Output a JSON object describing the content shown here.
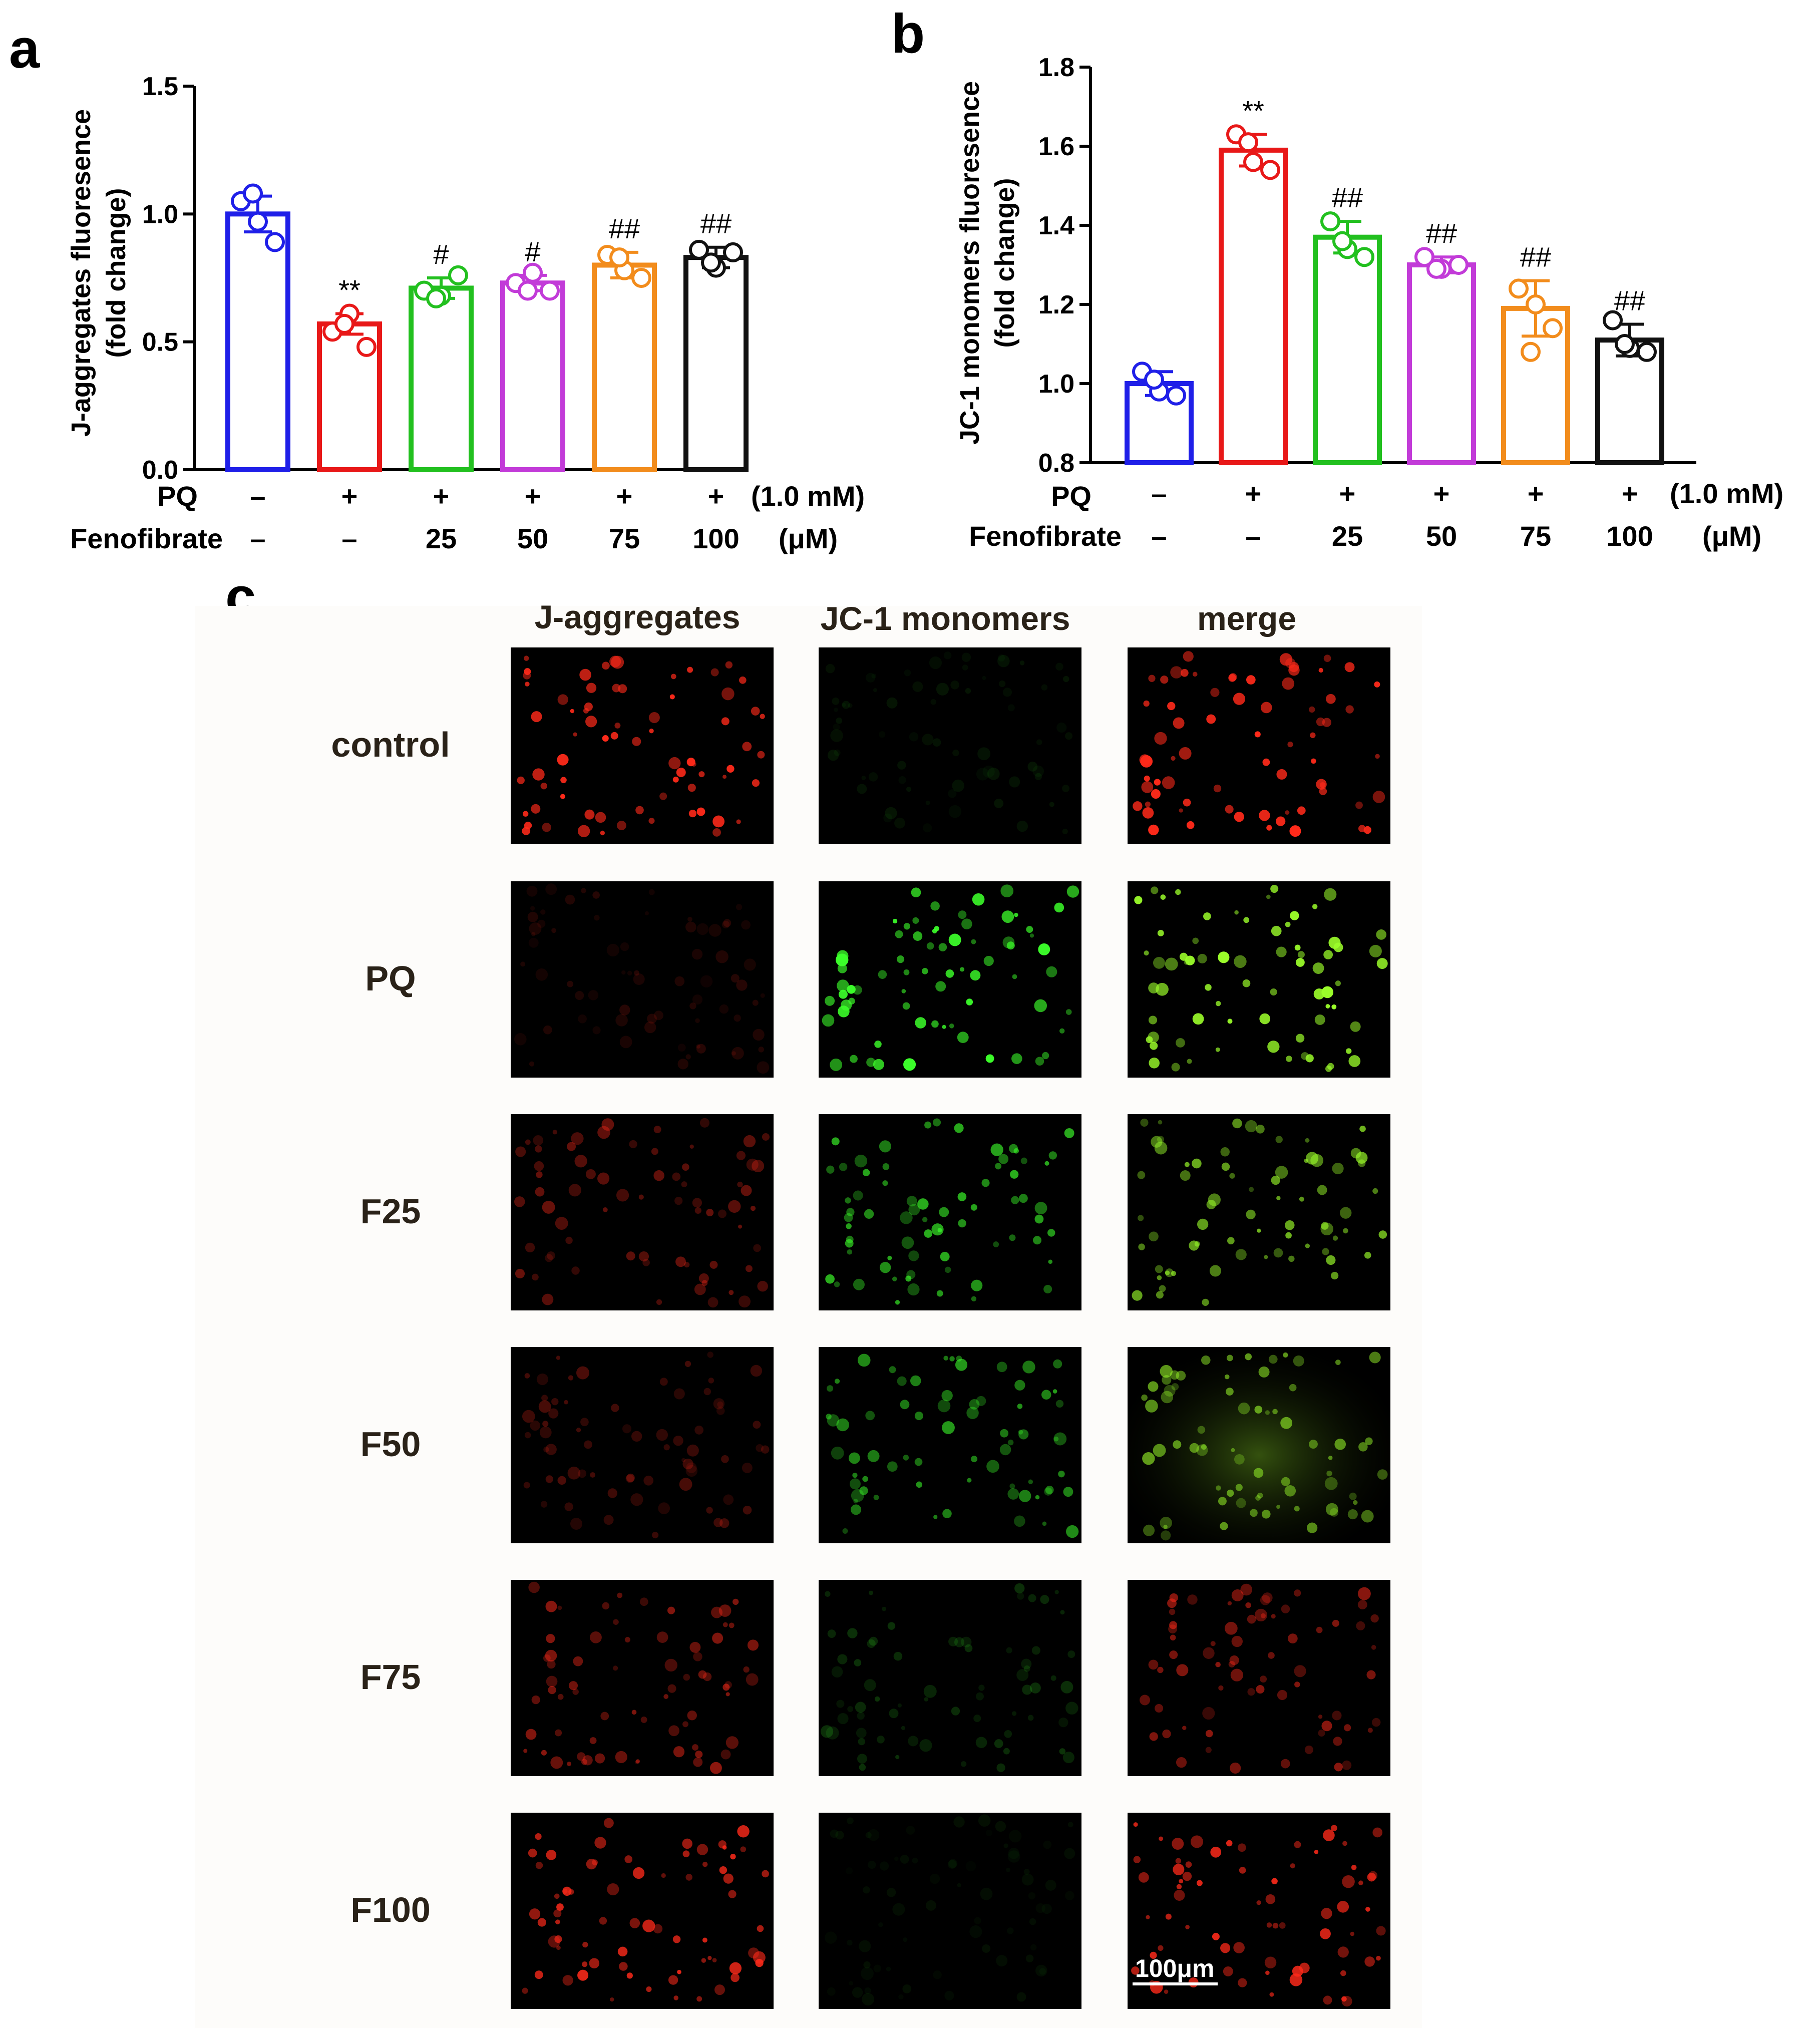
{
  "panel_labels": {
    "a": "a",
    "b": "b",
    "c": "c"
  },
  "treatment_rows": {
    "pq_label": "PQ",
    "fenofibrate_label": "Fenofibrate",
    "pq_unit": "(1.0 mM)",
    "fenofibrate_unit": "(μM)",
    "pq_values": [
      "–",
      "+",
      "+",
      "+",
      "+",
      "+"
    ],
    "fenofibrate_values": [
      "–",
      "–",
      "25",
      "50",
      "75",
      "100"
    ]
  },
  "chart_data": [
    {
      "type": "bar",
      "panel": "a",
      "ylabel": "J-aggregates fluoresence",
      "ylabel2": "(fold change)",
      "ylim": [
        0,
        1.5
      ],
      "yticks": [
        "0.0",
        "0.5",
        "1.0",
        "1.5"
      ],
      "categories": [
        "control",
        "PQ",
        "F25",
        "F50",
        "F75",
        "F100"
      ],
      "values": [
        1.0,
        0.57,
        0.71,
        0.73,
        0.8,
        0.83
      ],
      "sd": [
        0.07,
        0.04,
        0.04,
        0.03,
        0.05,
        0.04
      ],
      "points": [
        [
          1.05,
          0.97,
          0.89,
          1.08
        ],
        [
          0.54,
          0.61,
          0.48,
          0.57
        ],
        [
          0.7,
          0.68,
          0.76,
          0.67
        ],
        [
          0.73,
          0.77,
          0.7,
          0.7
        ],
        [
          0.84,
          0.78,
          0.75,
          0.83
        ],
        [
          0.86,
          0.79,
          0.85,
          0.81
        ]
      ],
      "significance": [
        "",
        "**",
        "#",
        "#",
        "##",
        "##"
      ],
      "colors": [
        "#1f1fe8",
        "#e81818",
        "#22c01f",
        "#c23bd8",
        "#f28c1c",
        "#111111"
      ],
      "grid": false
    },
    {
      "type": "bar",
      "panel": "b",
      "ylabel": "JC-1 monomers fluoresence",
      "ylabel2": "(fold change)",
      "ylim": [
        0.8,
        1.8
      ],
      "yticks": [
        "0.8",
        "1.0",
        "1.2",
        "1.4",
        "1.6",
        "1.8"
      ],
      "categories": [
        "control",
        "PQ",
        "F25",
        "F50",
        "F75",
        "F100"
      ],
      "values": [
        1.0,
        1.59,
        1.37,
        1.3,
        1.19,
        1.11
      ],
      "sd": [
        0.03,
        0.04,
        0.04,
        0.02,
        0.07,
        0.04
      ],
      "points": [
        [
          1.03,
          0.98,
          0.97,
          1.01
        ],
        [
          1.63,
          1.56,
          1.54,
          1.61
        ],
        [
          1.41,
          1.34,
          1.32,
          1.36
        ],
        [
          1.32,
          1.29,
          1.3,
          1.29
        ],
        [
          1.24,
          1.2,
          1.14,
          1.08
        ],
        [
          1.16,
          1.09,
          1.08,
          1.1
        ]
      ],
      "significance": [
        "",
        "**",
        "##",
        "##",
        "##",
        "##"
      ],
      "colors": [
        "#1f1fe8",
        "#e81818",
        "#22c01f",
        "#c23bd8",
        "#f28c1c",
        "#111111"
      ],
      "grid": false
    }
  ],
  "micrographs": {
    "columns": [
      "J-aggregates",
      "JC-1 monomers",
      "merge"
    ],
    "rows": [
      "control",
      "PQ",
      "F25",
      "F50",
      "F75",
      "F100"
    ],
    "red_intensity": [
      1.0,
      0.15,
      0.4,
      0.3,
      0.55,
      0.9
    ],
    "green_intensity": [
      0.08,
      1.0,
      0.7,
      0.6,
      0.2,
      0.06
    ],
    "scale_bar": "100μm"
  }
}
